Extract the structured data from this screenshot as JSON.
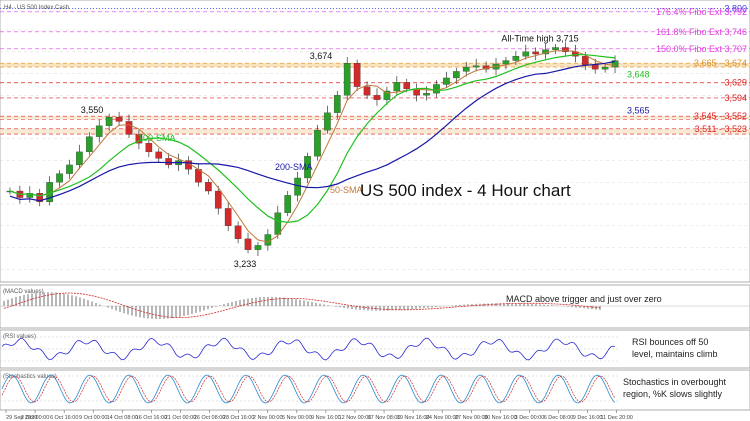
{
  "header": {
    "symbol_label": "H4 · US 500 Index Cash"
  },
  "chart_data": {
    "type": "candlestick",
    "title": "US 500 index - 4 Hour chart",
    "price_axis": {
      "ylim": [
        3180,
        3810
      ]
    },
    "levels": [
      {
        "value": 3800,
        "label": "3,800",
        "color": "#3a3af0",
        "style": "dotted"
      },
      {
        "value": 3792,
        "label": "176.4% Fibo Ext 3,792",
        "color": "#e040e0",
        "style": "dashed"
      },
      {
        "value": 3746,
        "label": "161.8% Fibo Ext 3,746",
        "color": "#e040e0",
        "style": "dashed"
      },
      {
        "value": 3707,
        "label": "150.0% Fibo Ext 3,707",
        "color": "#e040e0",
        "style": "dashed"
      },
      {
        "value": 3674,
        "label": "3,665 - 3,674",
        "color": "#e09020",
        "style": "band",
        "low": 3665
      },
      {
        "value": 3629,
        "label": "3,629",
        "color": "#e02020",
        "style": "dashed"
      },
      {
        "value": 3594,
        "label": "3,594",
        "color": "#e02020",
        "style": "dashed"
      },
      {
        "value": 3552,
        "label": "3,545 - 3,552",
        "color": "#e02020",
        "style": "band",
        "low": 3545
      },
      {
        "value": 3523,
        "label": "3,511 - 3,523",
        "color": "#e02020",
        "style": "band",
        "low": 3511
      }
    ],
    "ma_labels": {
      "sma50": {
        "label": "50-SMA",
        "color": "#c07838"
      },
      "sma100": {
        "label": "100-SMA",
        "color": "#20c020"
      },
      "sma200": {
        "label": "200-SMA",
        "color": "#1818a8"
      }
    },
    "ma_values": {
      "sma100": "3,648",
      "sma200": "3,565"
    },
    "annotations": [
      {
        "text": "3,550",
        "value": 3550,
        "date": "9 Oct"
      },
      {
        "text": "3,674",
        "value": 3674,
        "date": "9 Nov"
      },
      {
        "text": "3,233",
        "value": 3233,
        "date": "30 Oct"
      },
      {
        "text": "All-Time high 3,715",
        "value": 3715,
        "date": "8 Dec"
      }
    ],
    "close_series": [
      3380,
      3365,
      3375,
      3355,
      3400,
      3420,
      3440,
      3470,
      3505,
      3530,
      3550,
      3540,
      3510,
      3490,
      3470,
      3455,
      3440,
      3450,
      3430,
      3400,
      3380,
      3340,
      3300,
      3270,
      3245,
      3255,
      3280,
      3330,
      3370,
      3410,
      3460,
      3520,
      3560,
      3600,
      3674,
      3620,
      3600,
      3590,
      3610,
      3630,
      3615,
      3600,
      3605,
      3625,
      3640,
      3655,
      3665,
      3668,
      3660,
      3672,
      3680,
      3690,
      3700,
      3695,
      3705,
      3710,
      3700,
      3690,
      3670,
      3660,
      3665,
      3680
    ],
    "x_ticks": [
      "29 Sep 2020",
      "2 Oct 00:00",
      "6 Oct 16:00",
      "9 Oct 00:00",
      "14 Oct 08:00",
      "16 Oct 16:00",
      "21 Oct 00:00",
      "26 Oct 08:00",
      "28 Oct 16:00",
      "2 Nov 00:00",
      "5 Nov 00:00",
      "9 Nov 16:00",
      "12 Nov 00:00",
      "17 Nov 08:00",
      "19 Nov 16:00",
      "24 Nov 00:00",
      "27 Nov 00:00",
      "30 Nov 16:00",
      "3 Dec 00:00",
      "6 Dec 08:00",
      "9 Dec 16:00",
      "11 Dec 20:00"
    ],
    "indicators": {
      "macd": {
        "header": "(MACD values)",
        "note": "MACD above trigger and just over zero"
      },
      "rsi": {
        "header": "(RSI values)",
        "note_line1": "RSI bounces off 50",
        "note_line2": "level, maintains climb"
      },
      "stoch": {
        "header": "(Stochastics values)",
        "note_line1": "Stochastics in overbought",
        "note_line2": "region, %K slows slightly"
      }
    }
  }
}
